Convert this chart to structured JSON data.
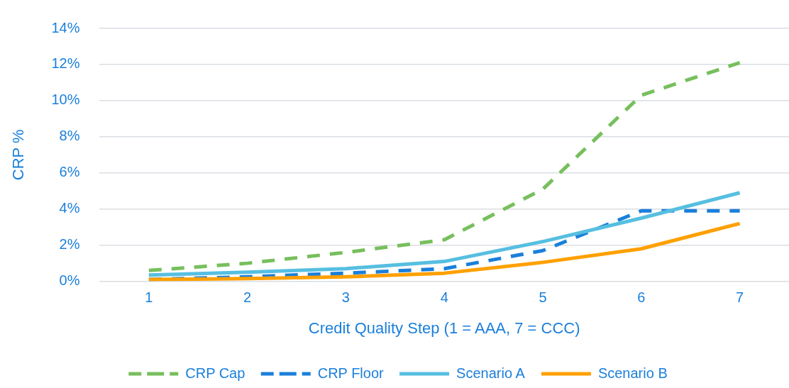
{
  "chart_data": {
    "type": "line",
    "xlabel": "Credit Quality Step (1 = AAA, 7 = CCC)",
    "ylabel": "CRP %",
    "categories": [
      "1",
      "2",
      "3",
      "4",
      "5",
      "6",
      "7"
    ],
    "ylim": [
      0,
      14
    ],
    "yticks": [
      {
        "value": 0,
        "label": "0%"
      },
      {
        "value": 2,
        "label": "2%"
      },
      {
        "value": 4,
        "label": "4%"
      },
      {
        "value": 6,
        "label": "6%"
      },
      {
        "value": 8,
        "label": "8%"
      },
      {
        "value": 10,
        "label": "10%"
      },
      {
        "value": 12,
        "label": "12%"
      },
      {
        "value": 14,
        "label": "14%"
      }
    ],
    "grid": "y",
    "legend": "bottom",
    "marker": "none",
    "series": [
      {
        "name": "CRP Cap",
        "color": "#77bf5d",
        "line_style": "dashed",
        "values": [
          0.6,
          1.0,
          1.6,
          2.3,
          5.1,
          10.3,
          12.1
        ]
      },
      {
        "name": "CRP Floor",
        "color": "#1a7fdb",
        "line_style": "dashed",
        "values": [
          0.1,
          0.25,
          0.45,
          0.7,
          1.7,
          3.9,
          3.9
        ]
      },
      {
        "name": "Scenario A",
        "color": "#56bfe0",
        "line_style": "solid",
        "values": [
          0.35,
          0.5,
          0.7,
          1.1,
          2.2,
          3.5,
          4.9
        ]
      },
      {
        "name": "Scenario B",
        "color": "#ffa000",
        "line_style": "solid",
        "values": [
          0.1,
          0.15,
          0.25,
          0.45,
          1.05,
          1.8,
          3.2
        ]
      }
    ]
  }
}
